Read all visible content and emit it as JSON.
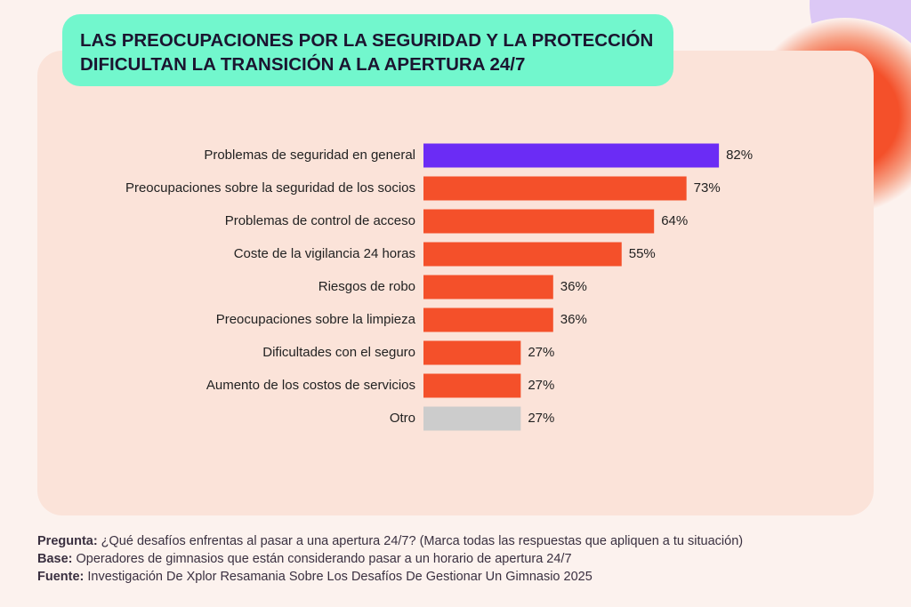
{
  "chart_data": {
    "type": "barh",
    "title": "LAS PREOCUPACIONES POR LA SEGURIDAD Y LA PROTECCIÓN DIFICULTAN LA TRANSICIÓN A LA APERTURA 24/7",
    "categories": [
      "Problemas de seguridad en general",
      "Preocupaciones sobre la seguridad de los socios",
      "Problemas de control de acceso",
      "Coste de la vigilancia 24 horas",
      "Riesgos de robo",
      "Preocupaciones sobre la limpieza",
      "Dificultades con el seguro",
      "Aumento de los costos de servicios",
      "Otro"
    ],
    "values": [
      82,
      73,
      64,
      55,
      36,
      36,
      27,
      27,
      27
    ],
    "value_labels": [
      "82%",
      "73%",
      "64%",
      "55%",
      "36%",
      "36%",
      "27%",
      "27%",
      "27%"
    ],
    "colors": [
      "#6b2cf5",
      "#f4502a",
      "#f4502a",
      "#f4502a",
      "#f4502a",
      "#f4502a",
      "#f4502a",
      "#f4502a",
      "#cccccc"
    ],
    "notes": [
      {
        "label": "Pregunta:",
        "text": "¿Qué desafíos enfrentas al pasar a una apertura 24/7? (Marca todas las respuestas que apliquen a tu situación)"
      },
      {
        "label": "Base:",
        "text": "Operadores de gimnasios que están considerando pasar a un horario de apertura 24/7"
      },
      {
        "label": "Fuente:",
        "text": "Investigación De Xplor Resamania Sobre Los Desafíos De Gestionar Un Gimnasio 2025"
      }
    ]
  }
}
